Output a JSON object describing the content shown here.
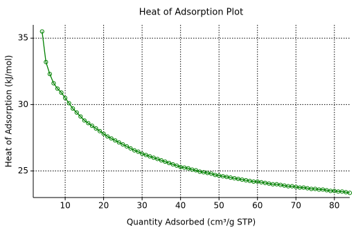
{
  "chart_data": {
    "type": "line",
    "title": "Heat of Adsorption Plot",
    "xlabel": "Quantity Adsorbed (cm³/g STP)",
    "ylabel": "Heat of Adsorption (kJ/mol)",
    "color": "#008000",
    "marker": "circle",
    "grid": true,
    "xlim": [
      1.7,
      84
    ],
    "ylim": [
      23,
      36
    ],
    "xticks": [
      10,
      20,
      30,
      40,
      50,
      60,
      70,
      80
    ],
    "yticks": [
      25,
      30,
      35
    ],
    "x": [
      4,
      5,
      6,
      7,
      8,
      9,
      10,
      11,
      12,
      13,
      14,
      15,
      16,
      17,
      18,
      19,
      20,
      21,
      22,
      23,
      24,
      25,
      26,
      27,
      28,
      29,
      30,
      31,
      32,
      33,
      34,
      35,
      36,
      37,
      38,
      39,
      40,
      41,
      42,
      43,
      44,
      45,
      46,
      47,
      48,
      49,
      50,
      51,
      52,
      53,
      54,
      55,
      56,
      57,
      58,
      59,
      60,
      61,
      62,
      63,
      64,
      65,
      66,
      67,
      68,
      69,
      70,
      71,
      72,
      73,
      74,
      75,
      76,
      77,
      78,
      79,
      80,
      81,
      82,
      83,
      84
    ],
    "values": [
      35.5,
      33.2,
      32.3,
      31.6,
      31.2,
      30.9,
      30.5,
      30.1,
      29.7,
      29.4,
      29.1,
      28.8,
      28.6,
      28.4,
      28.2,
      28.0,
      27.8,
      27.6,
      27.45,
      27.3,
      27.15,
      27.0,
      26.85,
      26.7,
      26.55,
      26.45,
      26.3,
      26.2,
      26.1,
      26.0,
      25.9,
      25.8,
      25.7,
      25.6,
      25.5,
      25.4,
      25.3,
      25.25,
      25.2,
      25.1,
      25.05,
      24.95,
      24.9,
      24.85,
      24.8,
      24.7,
      24.65,
      24.6,
      24.55,
      24.5,
      24.45,
      24.4,
      24.35,
      24.3,
      24.25,
      24.2,
      24.2,
      24.15,
      24.1,
      24.05,
      24.0,
      24.0,
      23.95,
      23.9,
      23.85,
      23.85,
      23.8,
      23.75,
      23.75,
      23.7,
      23.65,
      23.65,
      23.6,
      23.6,
      23.55,
      23.5,
      23.5,
      23.45,
      23.45,
      23.4,
      23.35
    ]
  }
}
